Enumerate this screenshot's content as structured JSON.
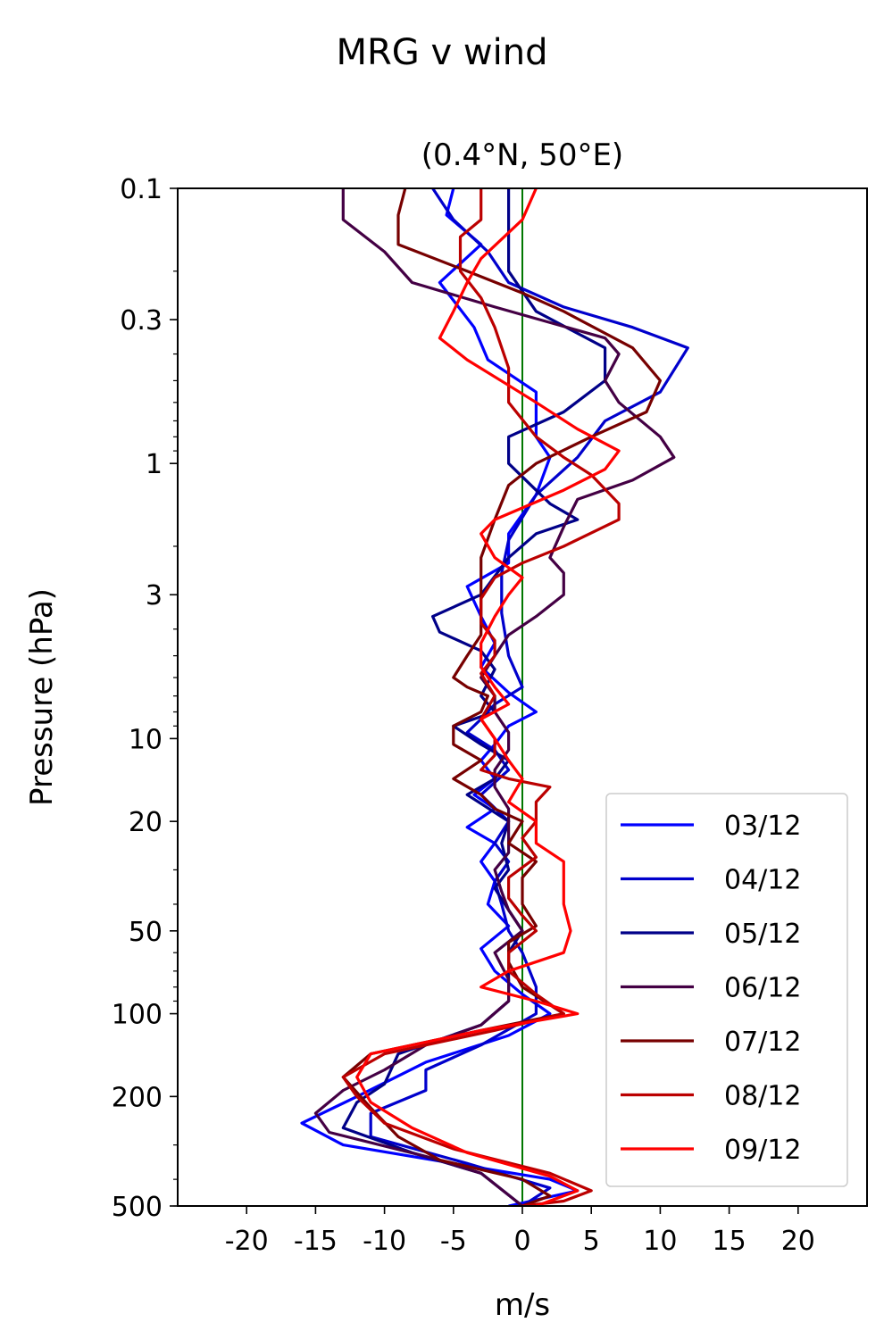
{
  "chart_data": {
    "type": "line",
    "title": "MRG v wind",
    "subtitle": "(0.4°N, 50°E)",
    "xlabel": "m/s",
    "ylabel": "Pressure (hPa)",
    "xlim": [
      -25,
      25
    ],
    "ylim": [
      500,
      0.1
    ],
    "yscale": "log",
    "xticks": [
      -20,
      -15,
      -10,
      -5,
      0,
      5,
      10,
      15,
      20
    ],
    "xtick_labels": [
      "-20",
      "-15",
      "-10",
      "-5",
      "0",
      "5",
      "10",
      "15",
      "20"
    ],
    "yticks": [
      0.1,
      0.3,
      1,
      3,
      10,
      20,
      50,
      100,
      200,
      500
    ],
    "ytick_labels": [
      "0.1",
      "0.3",
      "1",
      "3",
      "10",
      "20",
      "50",
      "100",
      "200",
      "500"
    ],
    "zero_line_color": "#007700",
    "legend_position": "lower-right",
    "grid": false,
    "series": [
      {
        "name": "03/12",
        "color": "#0000ff",
        "points": [
          [
            -5,
            0.1
          ],
          [
            -5.5,
            0.125
          ],
          [
            -3,
            0.16
          ],
          [
            -6,
            0.22
          ],
          [
            -3.5,
            0.32
          ],
          [
            -2.5,
            0.42
          ],
          [
            1,
            0.55
          ],
          [
            1,
            0.8
          ],
          [
            2,
            0.95
          ],
          [
            1,
            1.3
          ],
          [
            -1,
            1.8
          ],
          [
            -1,
            2.3
          ],
          [
            -4,
            2.8
          ],
          [
            -3,
            3.6
          ],
          [
            -2,
            4.5
          ],
          [
            -3,
            5.5
          ],
          [
            -1,
            6.8
          ],
          [
            1,
            8
          ],
          [
            -1,
            9
          ],
          [
            -2,
            10.5
          ],
          [
            -3,
            12
          ],
          [
            -2,
            14
          ],
          [
            -3.5,
            16
          ],
          [
            -2,
            18
          ],
          [
            -4,
            21
          ],
          [
            -2,
            24
          ],
          [
            -3,
            28
          ],
          [
            -2,
            33
          ],
          [
            -2.5,
            40
          ],
          [
            -1,
            48
          ],
          [
            -3,
            58
          ],
          [
            -2,
            70
          ],
          [
            0,
            85
          ],
          [
            2,
            100
          ],
          [
            -1,
            120
          ],
          [
            -7,
            150
          ],
          [
            -12,
            200
          ],
          [
            -16,
            250
          ],
          [
            -13,
            300
          ],
          [
            -5,
            350
          ],
          [
            2,
            400
          ],
          [
            4,
            440
          ],
          [
            -1,
            500
          ]
        ]
      },
      {
        "name": "04/12",
        "color": "#0000cc",
        "points": [
          [
            -6.5,
            0.1
          ],
          [
            -5,
            0.13
          ],
          [
            -2.5,
            0.17
          ],
          [
            -1,
            0.22
          ],
          [
            3,
            0.27
          ],
          [
            8,
            0.32
          ],
          [
            12,
            0.38
          ],
          [
            10,
            0.55
          ],
          [
            6,
            0.7
          ],
          [
            4,
            0.95
          ],
          [
            1,
            1.3
          ],
          [
            -1,
            1.9
          ],
          [
            -1.5,
            2.5
          ],
          [
            -1.5,
            3.5
          ],
          [
            -1,
            5
          ],
          [
            0,
            6.5
          ],
          [
            -2,
            7.5
          ],
          [
            -3,
            8.5
          ],
          [
            -4,
            9.5
          ],
          [
            -2,
            11
          ],
          [
            -1,
            13
          ],
          [
            -3,
            16
          ],
          [
            -1,
            20
          ],
          [
            -2,
            24
          ],
          [
            -1,
            28
          ],
          [
            -2,
            33
          ],
          [
            -1.5,
            40
          ],
          [
            -1,
            50
          ],
          [
            0,
            60
          ],
          [
            1,
            80
          ],
          [
            1,
            100
          ],
          [
            -3,
            130
          ],
          [
            -7,
            160
          ],
          [
            -7,
            190
          ],
          [
            -11,
            230
          ],
          [
            -11,
            280
          ],
          [
            -4,
            350
          ],
          [
            2,
            430
          ],
          [
            0,
            500
          ]
        ]
      },
      {
        "name": "05/12",
        "color": "#000088",
        "points": [
          [
            -1,
            0.1
          ],
          [
            -1,
            0.15
          ],
          [
            -1,
            0.2
          ],
          [
            1,
            0.28
          ],
          [
            6,
            0.38
          ],
          [
            6,
            0.5
          ],
          [
            3,
            0.65
          ],
          [
            -1,
            0.8
          ],
          [
            -1,
            1.0
          ],
          [
            2,
            1.4
          ],
          [
            4,
            1.6
          ],
          [
            1,
            1.8
          ],
          [
            -1,
            2.2
          ],
          [
            -3,
            3
          ],
          [
            -6.5,
            3.6
          ],
          [
            -6,
            4.1
          ],
          [
            -3,
            4.8
          ],
          [
            -2,
            5.6
          ],
          [
            -3,
            7
          ],
          [
            -2,
            8
          ],
          [
            -5,
            9
          ],
          [
            -3,
            10.5
          ],
          [
            -1,
            12
          ],
          [
            -2,
            14
          ],
          [
            -4,
            16
          ],
          [
            -1,
            20
          ],
          [
            -1.5,
            24
          ],
          [
            -1,
            30
          ],
          [
            -2,
            35
          ],
          [
            -1,
            42
          ],
          [
            0,
            50
          ],
          [
            -1,
            60
          ],
          [
            -1,
            75
          ],
          [
            -1,
            90
          ],
          [
            -3,
            110
          ],
          [
            -9,
            140
          ],
          [
            -10,
            180
          ],
          [
            -12,
            210
          ],
          [
            -13,
            260
          ],
          [
            -8,
            320
          ],
          [
            -3,
            380
          ],
          [
            0,
            500
          ]
        ]
      },
      {
        "name": "06/12",
        "color": "#440044",
        "points": [
          [
            -13,
            0.1
          ],
          [
            -13,
            0.13
          ],
          [
            -10,
            0.17
          ],
          [
            -8,
            0.22
          ],
          [
            -2,
            0.27
          ],
          [
            6,
            0.35
          ],
          [
            7,
            0.4
          ],
          [
            6,
            0.5
          ],
          [
            7,
            0.6
          ],
          [
            10,
            0.8
          ],
          [
            11,
            0.95
          ],
          [
            8,
            1.15
          ],
          [
            4,
            1.35
          ],
          [
            3,
            1.7
          ],
          [
            2,
            2.2
          ],
          [
            3,
            2.5
          ],
          [
            3,
            3
          ],
          [
            1,
            3.6
          ],
          [
            -1,
            4.2
          ],
          [
            -2,
            5
          ],
          [
            -3,
            6
          ],
          [
            -2,
            7
          ],
          [
            -2,
            8
          ],
          [
            -1,
            9.5
          ],
          [
            -1,
            11
          ],
          [
            -2,
            13
          ],
          [
            -2,
            15
          ],
          [
            -1,
            18
          ],
          [
            -1,
            22
          ],
          [
            -1,
            26
          ],
          [
            -2,
            30
          ],
          [
            -1.5,
            36
          ],
          [
            -1,
            42
          ],
          [
            0,
            50
          ],
          [
            -2,
            60
          ],
          [
            -1,
            75
          ],
          [
            -1,
            90
          ],
          [
            -3,
            110
          ],
          [
            -7,
            130
          ],
          [
            -10,
            160
          ],
          [
            -13,
            190
          ],
          [
            -15,
            230
          ],
          [
            -14,
            270
          ],
          [
            -7,
            330
          ],
          [
            -3,
            380
          ],
          [
            0,
            500
          ]
        ]
      },
      {
        "name": "07/12",
        "color": "#770000",
        "points": [
          [
            -8.5,
            0.1
          ],
          [
            -9,
            0.125
          ],
          [
            -9,
            0.16
          ],
          [
            -4,
            0.2
          ],
          [
            0,
            0.24
          ],
          [
            3,
            0.28
          ],
          [
            8,
            0.38
          ],
          [
            10,
            0.5
          ],
          [
            9,
            0.65
          ],
          [
            5,
            0.8
          ],
          [
            1,
            1.0
          ],
          [
            -1,
            1.2
          ],
          [
            -2,
            1.6
          ],
          [
            -3,
            2.2
          ],
          [
            -3,
            2.8
          ],
          [
            -3,
            3.5
          ],
          [
            -3,
            4.2
          ],
          [
            -4,
            5
          ],
          [
            -5,
            6
          ],
          [
            -4,
            6.5
          ],
          [
            -2.5,
            7
          ],
          [
            -3,
            8
          ],
          [
            -5,
            9
          ],
          [
            -5,
            10.5
          ],
          [
            -3,
            12
          ],
          [
            -5,
            14
          ],
          [
            -3,
            16
          ],
          [
            -2,
            18
          ],
          [
            0,
            20
          ],
          [
            -1,
            24
          ],
          [
            1,
            28
          ],
          [
            0,
            32
          ],
          [
            0,
            40
          ],
          [
            1,
            48
          ],
          [
            -1,
            55
          ],
          [
            -1,
            65
          ],
          [
            0,
            80
          ],
          [
            3,
            100
          ],
          [
            -3,
            115
          ],
          [
            -11,
            140
          ],
          [
            -13,
            170
          ],
          [
            -11,
            220
          ],
          [
            -9,
            280
          ],
          [
            -6,
            340
          ],
          [
            0,
            400
          ],
          [
            2,
            460
          ],
          [
            0,
            500
          ]
        ]
      },
      {
        "name": "08/12",
        "color": "#bb0000",
        "points": [
          [
            -3,
            0.1
          ],
          [
            -3,
            0.13
          ],
          [
            -4.5,
            0.15
          ],
          [
            -4.5,
            0.2
          ],
          [
            -3,
            0.25
          ],
          [
            -2,
            0.32
          ],
          [
            -1,
            0.45
          ],
          [
            -1,
            0.6
          ],
          [
            1,
            0.8
          ],
          [
            3,
            0.95
          ],
          [
            5,
            1.1
          ],
          [
            7,
            1.4
          ],
          [
            7,
            1.6
          ],
          [
            3,
            2
          ],
          [
            0,
            2.3
          ],
          [
            -2,
            2.6
          ],
          [
            -3,
            3.1
          ],
          [
            -3,
            3.8
          ],
          [
            -2,
            4.4
          ],
          [
            -2,
            5
          ],
          [
            -3,
            5.8
          ],
          [
            -2,
            7
          ],
          [
            -3,
            8.5
          ],
          [
            -2,
            10
          ],
          [
            -2,
            11.5
          ],
          [
            -3,
            13
          ],
          [
            -1,
            14
          ],
          [
            2,
            15
          ],
          [
            1,
            17
          ],
          [
            1,
            20
          ],
          [
            0,
            23
          ],
          [
            1,
            27
          ],
          [
            -1,
            32
          ],
          [
            -1,
            38
          ],
          [
            0,
            44
          ],
          [
            1,
            50
          ],
          [
            -1,
            60
          ],
          [
            -1,
            70
          ],
          [
            1,
            85
          ],
          [
            3,
            100
          ],
          [
            -2,
            115
          ],
          [
            -10,
            140
          ],
          [
            -13,
            170
          ],
          [
            -12,
            200
          ],
          [
            -10,
            250
          ],
          [
            -5,
            310
          ],
          [
            2,
            380
          ],
          [
            5,
            440
          ],
          [
            3,
            480
          ],
          [
            0,
            500
          ]
        ]
      },
      {
        "name": "09/12",
        "color": "#ff0000",
        "points": [
          [
            1,
            0.1
          ],
          [
            0,
            0.13
          ],
          [
            -3,
            0.18
          ],
          [
            -4,
            0.22
          ],
          [
            -5,
            0.28
          ],
          [
            -6,
            0.35
          ],
          [
            -4,
            0.42
          ],
          [
            -1,
            0.52
          ],
          [
            1,
            0.6
          ],
          [
            4,
            0.75
          ],
          [
            7,
            0.9
          ],
          [
            6,
            1.05
          ],
          [
            3,
            1.25
          ],
          [
            -2,
            1.6
          ],
          [
            -3,
            1.8
          ],
          [
            -2,
            2.2
          ],
          [
            0,
            2.6
          ],
          [
            -1,
            3
          ],
          [
            -2,
            3.6
          ],
          [
            -3,
            4.5
          ],
          [
            -3,
            5.5
          ],
          [
            -2,
            6.5
          ],
          [
            -1,
            7.5
          ],
          [
            -3,
            8.5
          ],
          [
            -2,
            10
          ],
          [
            -1,
            12
          ],
          [
            0,
            14
          ],
          [
            -1,
            17
          ],
          [
            1,
            20
          ],
          [
            1,
            24
          ],
          [
            3,
            28
          ],
          [
            3,
            33
          ],
          [
            3,
            40
          ],
          [
            3.5,
            50
          ],
          [
            3,
            60
          ],
          [
            -1,
            70
          ],
          [
            -3,
            80
          ],
          [
            1,
            90
          ],
          [
            4,
            100
          ],
          [
            -3,
            115
          ],
          [
            -11,
            140
          ],
          [
            -12,
            170
          ],
          [
            -11,
            210
          ],
          [
            -8,
            260
          ],
          [
            -4,
            320
          ],
          [
            2,
            390
          ],
          [
            4,
            440
          ],
          [
            1,
            500
          ]
        ]
      }
    ]
  }
}
